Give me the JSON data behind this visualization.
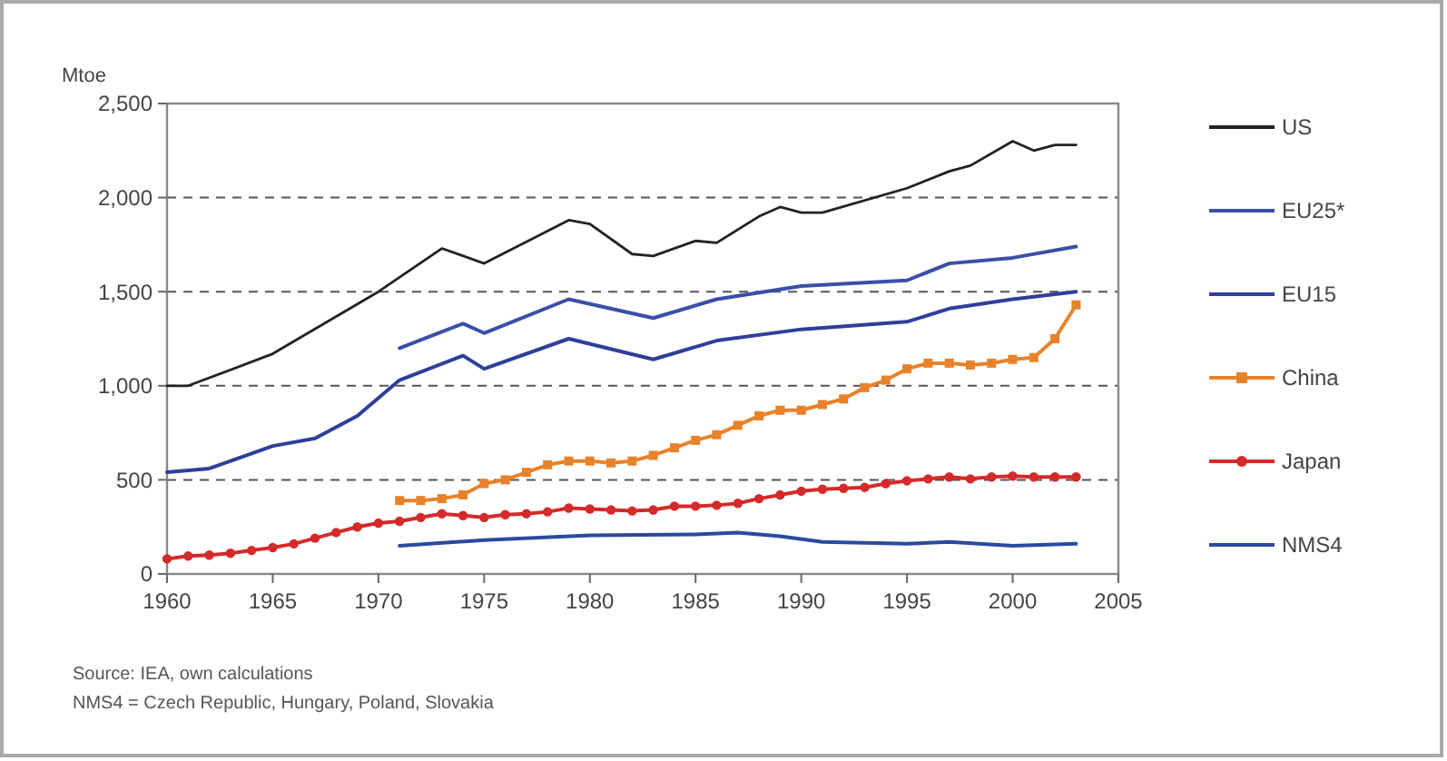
{
  "chart_data": {
    "type": "line",
    "ylabel": "Mtoe",
    "xlim": [
      1960,
      2005
    ],
    "xticks": [
      1960,
      1965,
      1970,
      1975,
      1980,
      1985,
      1990,
      1995,
      2000,
      2005
    ],
    "ylim": [
      0,
      2500
    ],
    "yticks": [
      0,
      {
        "value": 500,
        "label": "500"
      },
      {
        "value": 1000,
        "label": "1,000"
      },
      {
        "value": 1500,
        "label": "1,500"
      },
      {
        "value": 2000,
        "label": "2,000"
      },
      {
        "value": 2500,
        "label": "2,500"
      }
    ],
    "grid": "y",
    "legend": "right",
    "line_style": "solid",
    "annotations": [
      "Source: IEA, own calculations",
      "NMS4 = Czech Republic, Hungary, Poland, Slovakia"
    ],
    "series": [
      {
        "name": "US",
        "color": "#222222",
        "marker": "none",
        "x": [
          1960,
          1961,
          1965,
          1970,
          1973,
          1975,
          1979,
          1980,
          1982,
          1983,
          1985,
          1986,
          1988,
          1989,
          1990,
          1991,
          1995,
          1997,
          1998,
          2000,
          2001,
          2002,
          2003
        ],
        "values": [
          1000,
          1000,
          1170,
          1500,
          1730,
          1650,
          1880,
          1860,
          1700,
          1690,
          1770,
          1760,
          1900,
          1950,
          1920,
          1920,
          2050,
          2140,
          2170,
          2300,
          2250,
          2280,
          2280
        ]
      },
      {
        "name": "EU25*",
        "color": "#3a4fa8",
        "marker": "none",
        "x": [
          1971,
          1974,
          1975,
          1979,
          1983,
          1986,
          1990,
          1995,
          1997,
          2000,
          2003
        ],
        "values": [
          1200,
          1330,
          1280,
          1460,
          1360,
          1460,
          1530,
          1560,
          1650,
          1680,
          1740
        ]
      },
      {
        "name": "EU15",
        "color": "#2e3f9a",
        "marker": "none",
        "x": [
          1960,
          1962,
          1965,
          1967,
          1969,
          1971,
          1974,
          1975,
          1979,
          1983,
          1986,
          1990,
          1995,
          1997,
          2000,
          2003
        ],
        "values": [
          540,
          560,
          680,
          720,
          840,
          1030,
          1160,
          1090,
          1250,
          1140,
          1240,
          1300,
          1340,
          1410,
          1460,
          1500
        ]
      },
      {
        "name": "China",
        "color": "#e8822a",
        "marker": "square",
        "x": [
          1971,
          1972,
          1973,
          1974,
          1975,
          1976,
          1977,
          1978,
          1979,
          1980,
          1981,
          1982,
          1983,
          1984,
          1985,
          1986,
          1987,
          1988,
          1989,
          1990,
          1991,
          1992,
          1993,
          1994,
          1995,
          1996,
          1997,
          1998,
          1999,
          2000,
          2001,
          2002,
          2003
        ],
        "values": [
          390,
          390,
          400,
          420,
          480,
          500,
          540,
          580,
          600,
          600,
          590,
          600,
          630,
          670,
          710,
          740,
          790,
          840,
          870,
          870,
          900,
          930,
          990,
          1030,
          1090,
          1120,
          1120,
          1110,
          1120,
          1140,
          1150,
          1250,
          1430
        ]
      },
      {
        "name": "Japan",
        "color": "#d42a2a",
        "marker": "circle",
        "x": [
          1960,
          1961,
          1962,
          1963,
          1964,
          1965,
          1966,
          1967,
          1968,
          1969,
          1970,
          1971,
          1972,
          1973,
          1974,
          1975,
          1976,
          1977,
          1978,
          1979,
          1980,
          1981,
          1982,
          1983,
          1984,
          1985,
          1986,
          1987,
          1988,
          1989,
          1990,
          1991,
          1992,
          1993,
          1994,
          1995,
          1996,
          1997,
          1998,
          1999,
          2000,
          2001,
          2002,
          2003
        ],
        "values": [
          80,
          95,
          100,
          110,
          125,
          140,
          160,
          190,
          220,
          250,
          270,
          280,
          300,
          320,
          310,
          300,
          315,
          320,
          330,
          350,
          345,
          340,
          335,
          340,
          360,
          360,
          365,
          375,
          400,
          420,
          440,
          450,
          455,
          460,
          480,
          495,
          505,
          515,
          505,
          515,
          520,
          515,
          515,
          515
        ]
      },
      {
        "name": "NMS4",
        "color": "#2a4aa0",
        "marker": "none",
        "x": [
          1971,
          1975,
          1980,
          1985,
          1987,
          1989,
          1991,
          1995,
          1997,
          2000,
          2003
        ],
        "values": [
          150,
          180,
          205,
          210,
          220,
          200,
          170,
          160,
          170,
          150,
          160
        ]
      }
    ]
  }
}
